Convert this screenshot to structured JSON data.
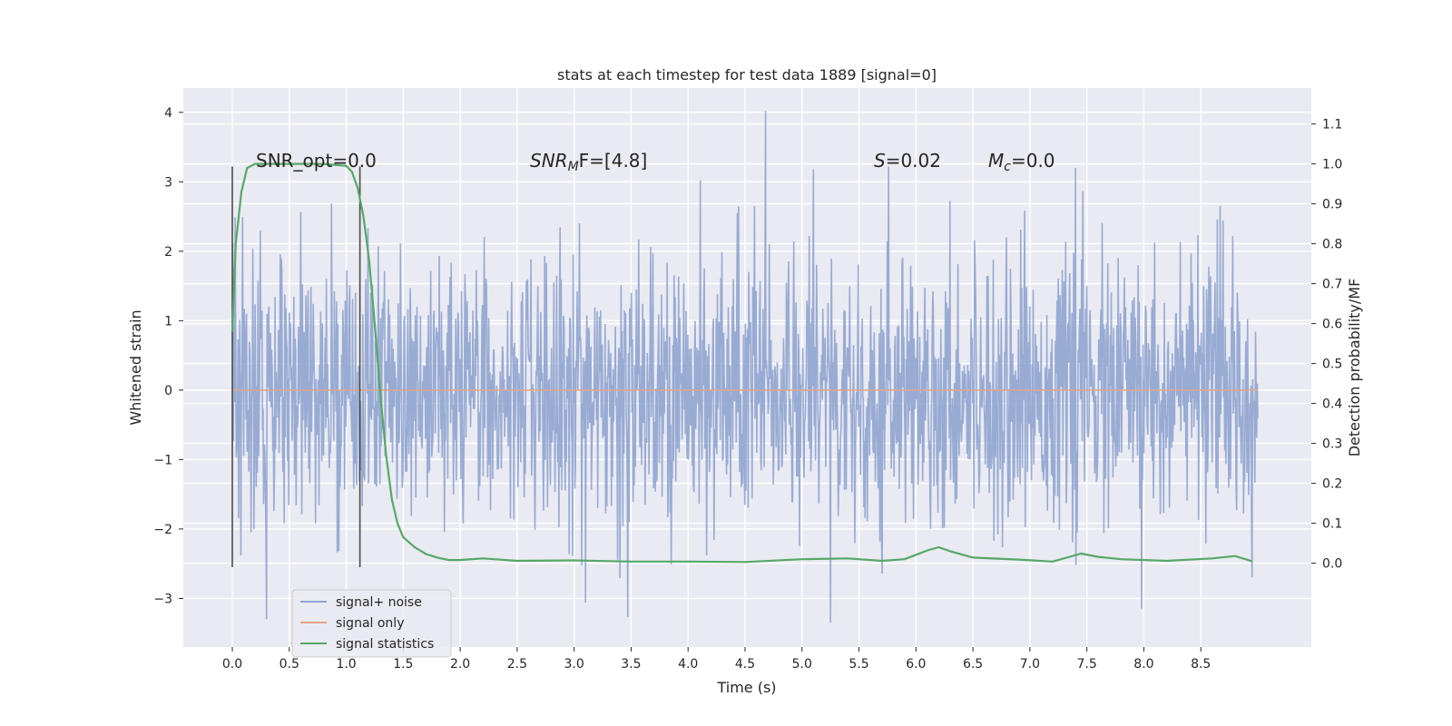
{
  "chart_data": {
    "type": "line",
    "title": "stats at each timestep for test data 1889 [signal=0]",
    "xlabel": "Time (s)",
    "ylabel": "Whitened strain",
    "y2label": "Detection probability/MF",
    "xlim": [
      -0.43,
      9.47
    ],
    "ylim": [
      -3.7,
      4.35
    ],
    "y2lim": [
      -0.21,
      1.19
    ],
    "xticks": [
      0.0,
      0.5,
      1.0,
      1.5,
      2.0,
      2.5,
      3.0,
      3.5,
      4.0,
      4.5,
      5.0,
      5.5,
      6.0,
      6.5,
      7.0,
      7.5,
      8.0,
      8.5
    ],
    "xtick_labels": [
      "0.0",
      "0.5",
      "1.0",
      "1.5",
      "2.0",
      "2.5",
      "3.0",
      "3.5",
      "4.0",
      "4.5",
      "5.0",
      "5.5",
      "6.0",
      "6.5",
      "7.0",
      "7.5",
      "8.0",
      "8.5"
    ],
    "yticks": [
      -3,
      -2,
      -1,
      0,
      1,
      2,
      3,
      4
    ],
    "ytick_labels": [
      "−3",
      "−2",
      "−1",
      "0",
      "1",
      "2",
      "3",
      "4"
    ],
    "y2ticks": [
      0.0,
      0.1,
      0.2,
      0.3,
      0.4,
      0.5,
      0.6,
      0.7,
      0.8,
      0.9,
      1.0,
      1.1
    ],
    "y2tick_labels": [
      "0.0",
      "0.1",
      "0.2",
      "0.3",
      "0.4",
      "0.5",
      "0.6",
      "0.7",
      "0.8",
      "0.9",
      "1.0",
      "1.1"
    ],
    "annotations": {
      "snr_opt": "SNR_opt=0.0",
      "snr_mf_main": "SNR",
      "snr_mf_sub": "M",
      "snr_mf_rest": "F=[4.8]",
      "s_sym": "S",
      "s_val": "=0.02",
      "mc_sym": "M",
      "mc_sub": "c",
      "mc_val": "=0.0"
    },
    "vertical_markers": [
      {
        "x": 0.0,
        "y_top": 3.22,
        "y_bottom": -2.55
      },
      {
        "x": 1.12,
        "y_top": 3.22,
        "y_bottom": -2.55
      }
    ],
    "series": [
      {
        "name": "signal+ noise",
        "color": "#8fa4cf",
        "axis": "left",
        "generated": true,
        "description": "Gaussian whitened-strain noise sampled over 0.0 to 9.0 s, amplitude within about -3.3 to 4.0",
        "x_range": [
          0.0,
          9.0
        ],
        "y_range": [
          -3.35,
          4.02
        ],
        "peaks": [
          {
            "x": 4.68,
            "y": 4.02
          },
          {
            "x": 7.4,
            "y": 3.2
          },
          {
            "x": 5.1,
            "y": 3.18
          },
          {
            "x": 5.76,
            "y": 3.22
          },
          {
            "x": 5.25,
            "y": -3.35
          },
          {
            "x": 0.3,
            "y": -3.3
          },
          {
            "x": 3.47,
            "y": -3.27
          },
          {
            "x": 3.1,
            "y": -3.06
          },
          {
            "x": 7.98,
            "y": -3.15
          }
        ]
      },
      {
        "name": "signal only",
        "color": "#e0a488",
        "axis": "left",
        "x": [
          0.0,
          9.0
        ],
        "y": [
          0.0,
          0.0
        ]
      },
      {
        "name": "signal statistics",
        "color": "#55a868",
        "axis": "right",
        "x": [
          0.0,
          0.03,
          0.08,
          0.13,
          0.2,
          0.3,
          0.5,
          0.8,
          1.0,
          1.05,
          1.1,
          1.15,
          1.2,
          1.25,
          1.3,
          1.35,
          1.4,
          1.45,
          1.5,
          1.6,
          1.7,
          1.8,
          1.9,
          2.0,
          2.2,
          2.5,
          3.0,
          3.5,
          4.0,
          4.5,
          5.0,
          5.4,
          5.7,
          5.9,
          6.1,
          6.2,
          6.3,
          6.5,
          6.9,
          7.2,
          7.45,
          7.6,
          7.8,
          8.2,
          8.6,
          8.8,
          8.95
        ],
        "y": [
          0.58,
          0.8,
          0.93,
          0.99,
          1.0,
          1.0,
          1.0,
          1.0,
          0.995,
          0.98,
          0.94,
          0.87,
          0.76,
          0.6,
          0.42,
          0.27,
          0.16,
          0.1,
          0.065,
          0.04,
          0.023,
          0.014,
          0.008,
          0.008,
          0.012,
          0.006,
          0.007,
          0.004,
          0.004,
          0.003,
          0.01,
          0.012,
          0.006,
          0.01,
          0.032,
          0.04,
          0.03,
          0.014,
          0.009,
          0.004,
          0.024,
          0.016,
          0.01,
          0.006,
          0.012,
          0.018,
          0.005
        ]
      }
    ],
    "legend": {
      "placement": "lower-left",
      "entries": [
        "signal+ noise",
        "signal only",
        "signal statistics"
      ]
    }
  }
}
